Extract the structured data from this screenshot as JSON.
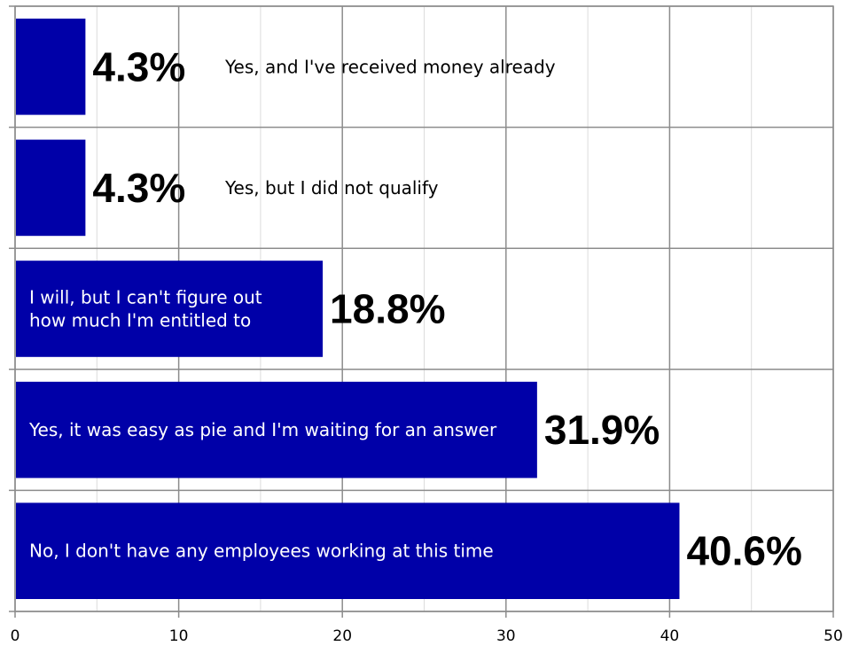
{
  "chart_data": {
    "type": "bar",
    "orientation": "horizontal",
    "categories": [
      "Yes, and I've received money already",
      "Yes, but I did not qualify",
      "I will, but I can't figure out how much I'm entitled to",
      "Yes, it was easy as pie and I'm waiting for an answer",
      "No, I don't have any employees working at this time"
    ],
    "category_lines": [
      [
        "Yes, and I've received money already"
      ],
      [
        "Yes, but I did not qualify"
      ],
      [
        "I will, but I can't figure out",
        "how much I'm entitled to"
      ],
      [
        "Yes, it was easy as pie and I'm waiting for an answer"
      ],
      [
        "No, I don't have any employees working at this time"
      ]
    ],
    "values": [
      4.3,
      4.3,
      18.8,
      31.9,
      40.6
    ],
    "value_labels": [
      "4.3%",
      "4.3%",
      "18.8%",
      "31.9%",
      "40.6%"
    ],
    "xlim": [
      0,
      50
    ],
    "x_ticks": [
      "0",
      "10",
      "20",
      "30",
      "40",
      "50"
    ],
    "x_tick_values": [
      0,
      10,
      20,
      30,
      40,
      50
    ],
    "minor_grid_step": 5,
    "grid": true,
    "title": "",
    "xlabel": "",
    "ylabel": "",
    "bar_color": "#0000a8",
    "label_text_color_inside": "#ffffff",
    "label_text_color_outside": "#000000"
  }
}
